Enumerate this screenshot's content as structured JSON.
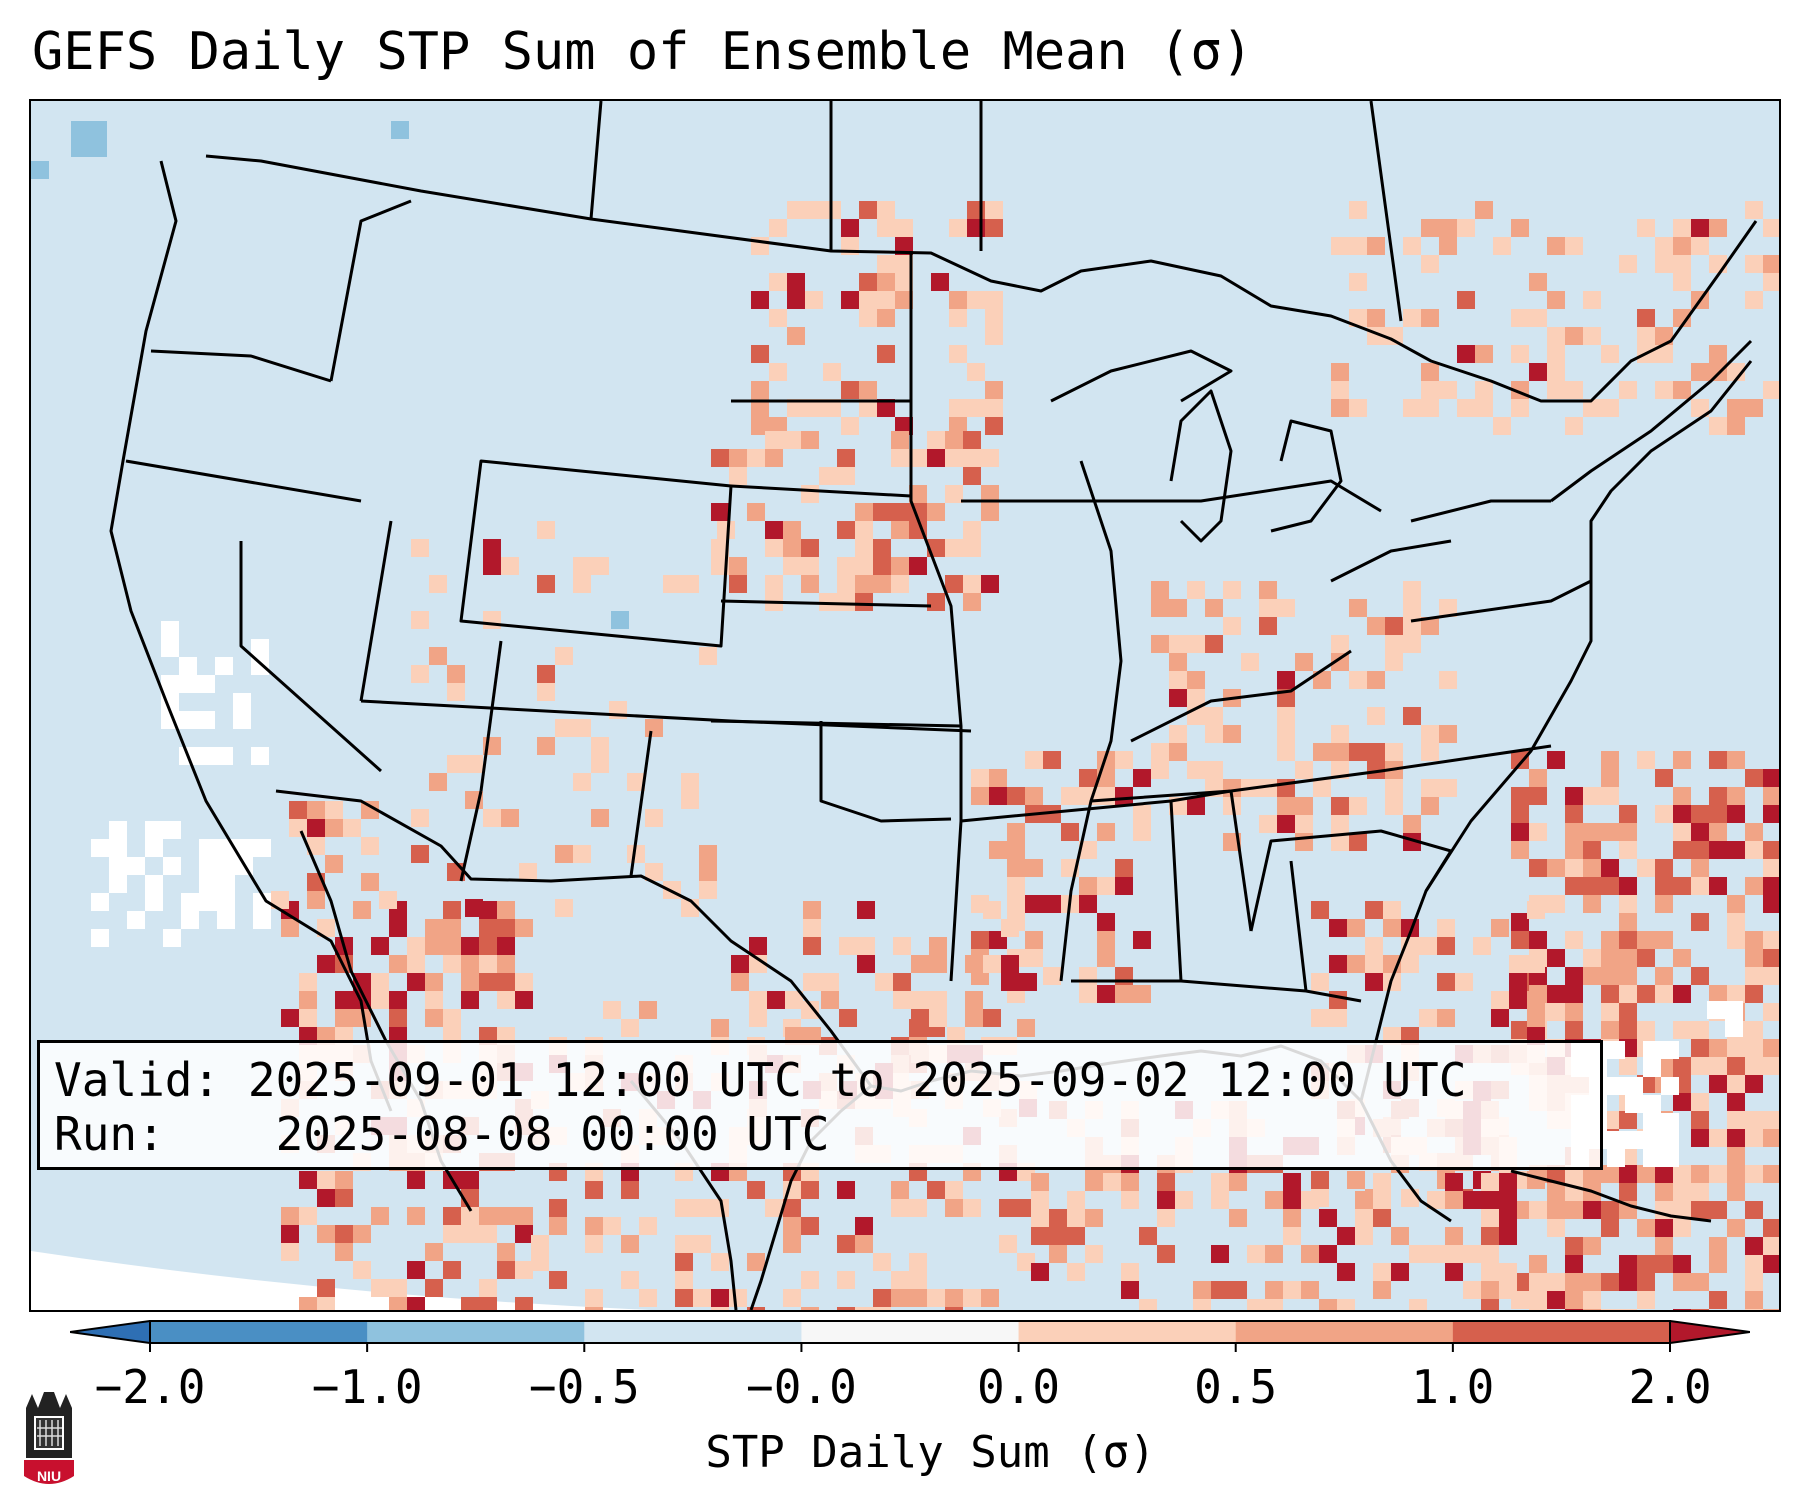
{
  "title": "GEFS Daily STP Sum of Ensemble Mean (σ)",
  "info": {
    "valid_label": "Valid:",
    "valid_value": "2025-09-01 12:00 UTC to 2025-09-02 12:00 UTC",
    "run_label": "Run:",
    "run_value": "2025-08-08 00:00 UTC"
  },
  "colorbar": {
    "label": "STP Daily Sum (σ)",
    "ticks": [
      "−2.0",
      "−1.0",
      "−0.5",
      "−0.0",
      "0.0",
      "0.5",
      "1.0",
      "2.0"
    ],
    "bins": [
      {
        "range": "< -2.0",
        "color": "#2e6fb4"
      },
      {
        "range": "-2.0 to -1.0",
        "color": "#4a8fc4"
      },
      {
        "range": "-1.0 to -0.5",
        "color": "#8fc2de"
      },
      {
        "range": "-0.5 to -0.0",
        "color": "#d2e5f1"
      },
      {
        "range": "-0.0 to 0.0",
        "color": "#f7f7f7"
      },
      {
        "range": "0.0 to 0.5",
        "color": "#fbd0b9"
      },
      {
        "range": "0.5 to 1.0",
        "color": "#f1a486"
      },
      {
        "range": "1.0 to 2.0",
        "color": "#d6604d"
      },
      {
        "range": "> 2.0",
        "color": "#b2182b"
      }
    ]
  },
  "colors": {
    "background_bin": "#d2e5f1",
    "light_red": "#fbd0b9",
    "medium_red": "#f1a486",
    "red": "#d6604d",
    "dark_red": "#b2182b",
    "white_bin": "#ffffff",
    "light_blue": "#8fc2de"
  },
  "logo": {
    "text": "NIU"
  }
}
